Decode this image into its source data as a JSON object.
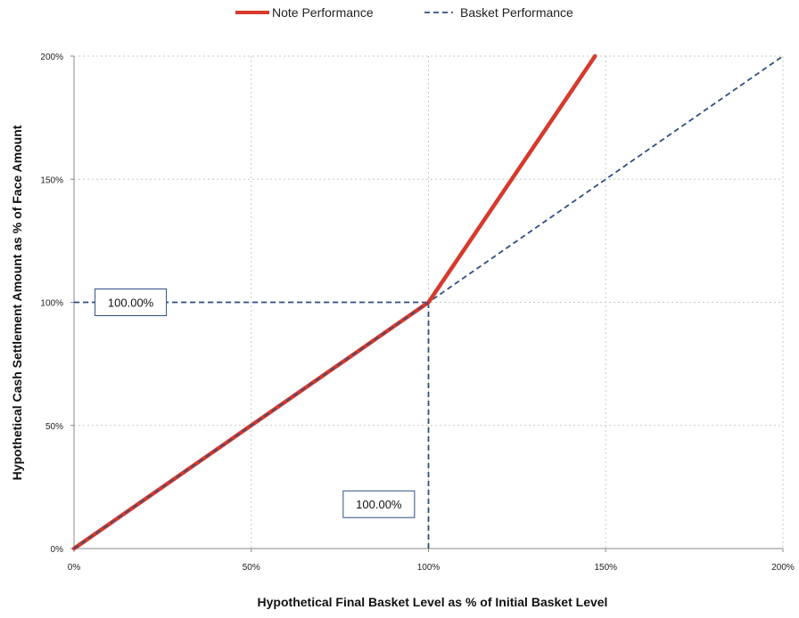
{
  "chart_data": {
    "type": "line",
    "title": "",
    "xlabel": "Hypothetical Final Basket Level as % of Initial Basket Level",
    "ylabel": "Hypothetical Cash Settlement Amount as % of Face Amount",
    "xlim": [
      0,
      200
    ],
    "ylim": [
      0,
      200
    ],
    "x_ticks": [
      0,
      50,
      100,
      150,
      200
    ],
    "x_tick_labels": [
      "0%",
      "50%",
      "100%",
      "150%",
      "200%"
    ],
    "y_ticks": [
      0,
      50,
      100,
      150,
      200
    ],
    "y_tick_labels": [
      "0%",
      "50%",
      "100%",
      "150%",
      "200%"
    ],
    "grid": true,
    "legend_position": "top-center",
    "series": [
      {
        "name": "Note Performance",
        "color": "#d63a2c",
        "style": "solid",
        "points": [
          [
            0,
            0
          ],
          [
            100,
            100
          ],
          [
            147,
            200
          ]
        ]
      },
      {
        "name": "Basket Performance",
        "color": "#2f4f80",
        "style": "dashed",
        "points": [
          [
            0,
            0
          ],
          [
            200,
            200
          ]
        ]
      }
    ],
    "reference_lines": [
      {
        "type": "horizontal",
        "y": 100,
        "x_from": 0,
        "x_to": 100
      },
      {
        "type": "vertical",
        "x": 100,
        "y_from": 0,
        "y_to": 100
      }
    ],
    "annotations": [
      {
        "text": "100.00%",
        "x": 16,
        "y": 100
      },
      {
        "text": "100.00%",
        "x": 86,
        "y": 18
      }
    ]
  }
}
